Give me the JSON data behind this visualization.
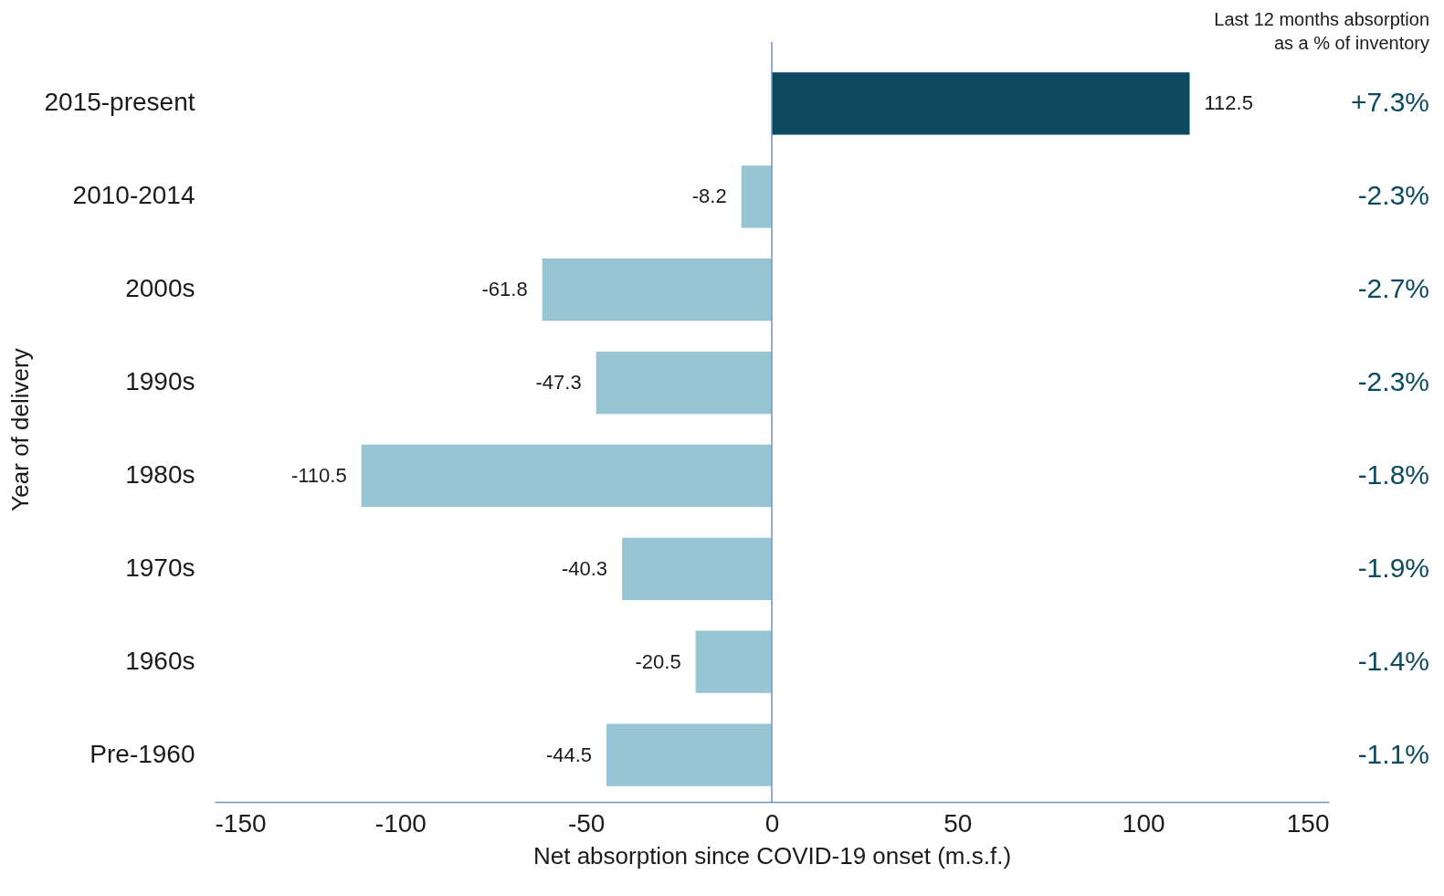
{
  "chart_data": {
    "type": "bar",
    "orientation": "horizontal",
    "categories": [
      "2015-present",
      "2010-2014",
      "2000s",
      "1990s",
      "1980s",
      "1970s",
      "1960s",
      "Pre-1960"
    ],
    "values": [
      112.5,
      -8.2,
      -61.8,
      -47.3,
      -110.5,
      -40.3,
      -20.5,
      -44.5
    ],
    "colors": [
      "#0b4a5f",
      "#97c5d4",
      "#97c5d4",
      "#97c5d4",
      "#97c5d4",
      "#97c5d4",
      "#97c5d4",
      "#97c5d4"
    ],
    "data_labels": true,
    "xlim": [
      -150,
      150
    ],
    "xticks": [
      -150,
      -100,
      -50,
      0,
      50,
      100,
      150
    ],
    "xlabel": "Net absorption since COVID-19 onset (m.s.f.)",
    "ylabel": "Year of delivery",
    "grid": false,
    "ref_lines": [
      {
        "axis": "x",
        "value": 0,
        "color": "#6f93c9"
      }
    ],
    "annotations": [
      "Last 12 months absorption\nas a % of inventory",
      "+7.3%",
      "-2.3%",
      "-2.7%",
      "-2.3%",
      "-1.8%",
      "-1.9%",
      "-1.4%",
      "-1.1%"
    ]
  }
}
